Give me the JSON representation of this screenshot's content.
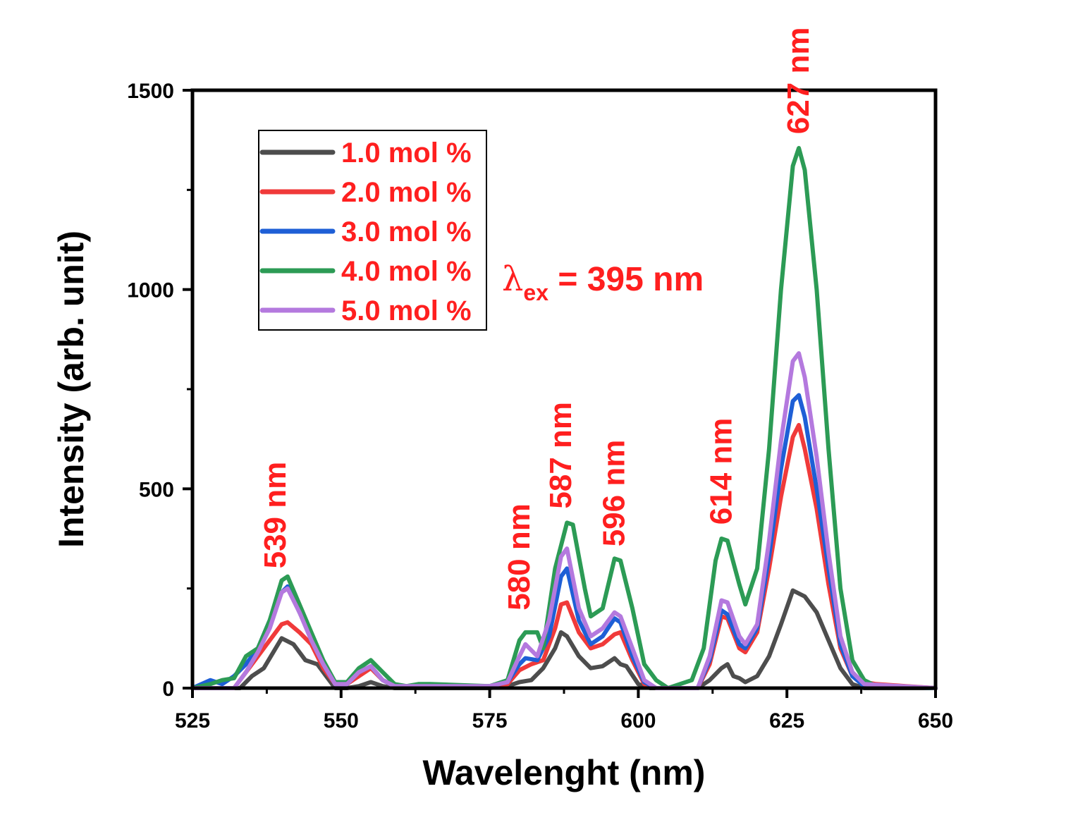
{
  "chart_data": {
    "type": "line",
    "title": "",
    "xlabel": "Wavelenght (nm)",
    "ylabel": "Intensity (arb. unit)",
    "xlim": [
      525,
      650
    ],
    "ylim": [
      0,
      1500
    ],
    "xticks": [
      525,
      550,
      575,
      600,
      625,
      650
    ],
    "yticks": [
      0,
      500,
      1000,
      1500
    ],
    "grid": false,
    "legend_position": "top-left",
    "excitation": {
      "symbol": "λ",
      "subscript": "ex",
      "text": " = 395 nm"
    },
    "peak_labels": [
      {
        "text": "539 nm",
        "x": 539,
        "y": 300
      },
      {
        "text": "580 nm",
        "x": 580,
        "y": 195
      },
      {
        "text": "587 nm",
        "x": 587,
        "y": 450
      },
      {
        "text": "596 nm",
        "x": 596,
        "y": 355
      },
      {
        "text": "614 nm",
        "x": 614,
        "y": 410
      },
      {
        "text": "627 nm",
        "x": 627,
        "y": 1390
      }
    ],
    "series": [
      {
        "name": "1.0 mol %",
        "color": "#4d4d4d",
        "points": [
          [
            525,
            0
          ],
          [
            533,
            0
          ],
          [
            535,
            30
          ],
          [
            537,
            50
          ],
          [
            539,
            100
          ],
          [
            540,
            125
          ],
          [
            542,
            110
          ],
          [
            544,
            70
          ],
          [
            546,
            60
          ],
          [
            548,
            20
          ],
          [
            549,
            0
          ],
          [
            551,
            0
          ],
          [
            553,
            5
          ],
          [
            555,
            15
          ],
          [
            557,
            5
          ],
          [
            559,
            0
          ],
          [
            575,
            0
          ],
          [
            578,
            5
          ],
          [
            580,
            15
          ],
          [
            582,
            20
          ],
          [
            584,
            50
          ],
          [
            586,
            100
          ],
          [
            587,
            140
          ],
          [
            588,
            130
          ],
          [
            590,
            80
          ],
          [
            592,
            50
          ],
          [
            594,
            55
          ],
          [
            596,
            75
          ],
          [
            597,
            60
          ],
          [
            598,
            55
          ],
          [
            600,
            10
          ],
          [
            602,
            0
          ],
          [
            610,
            0
          ],
          [
            612,
            20
          ],
          [
            614,
            50
          ],
          [
            615,
            60
          ],
          [
            616,
            30
          ],
          [
            617,
            25
          ],
          [
            618,
            15
          ],
          [
            620,
            30
          ],
          [
            622,
            80
          ],
          [
            624,
            160
          ],
          [
            626,
            245
          ],
          [
            628,
            230
          ],
          [
            630,
            190
          ],
          [
            632,
            120
          ],
          [
            634,
            50
          ],
          [
            636,
            10
          ],
          [
            638,
            0
          ],
          [
            650,
            0
          ]
        ]
      },
      {
        "name": "2.0 mol %",
        "color": "#f03a3a",
        "points": [
          [
            525,
            0
          ],
          [
            532,
            0
          ],
          [
            534,
            40
          ],
          [
            536,
            80
          ],
          [
            538,
            120
          ],
          [
            540,
            160
          ],
          [
            541,
            165
          ],
          [
            543,
            140
          ],
          [
            545,
            110
          ],
          [
            547,
            50
          ],
          [
            549,
            10
          ],
          [
            551,
            10
          ],
          [
            553,
            30
          ],
          [
            555,
            50
          ],
          [
            557,
            20
          ],
          [
            559,
            5
          ],
          [
            575,
            5
          ],
          [
            578,
            10
          ],
          [
            580,
            45
          ],
          [
            582,
            60
          ],
          [
            584,
            70
          ],
          [
            586,
            150
          ],
          [
            587,
            210
          ],
          [
            588,
            215
          ],
          [
            590,
            140
          ],
          [
            592,
            100
          ],
          [
            594,
            110
          ],
          [
            596,
            135
          ],
          [
            597,
            140
          ],
          [
            599,
            70
          ],
          [
            601,
            10
          ],
          [
            603,
            0
          ],
          [
            610,
            0
          ],
          [
            612,
            60
          ],
          [
            614,
            180
          ],
          [
            615,
            175
          ],
          [
            617,
            100
          ],
          [
            618,
            90
          ],
          [
            620,
            140
          ],
          [
            622,
            300
          ],
          [
            624,
            480
          ],
          [
            626,
            630
          ],
          [
            627,
            660
          ],
          [
            628,
            600
          ],
          [
            630,
            450
          ],
          [
            632,
            260
          ],
          [
            634,
            100
          ],
          [
            636,
            30
          ],
          [
            638,
            15
          ],
          [
            640,
            10
          ],
          [
            645,
            5
          ],
          [
            650,
            0
          ]
        ]
      },
      {
        "name": "3.0 mol %",
        "color": "#1e5fd6",
        "points": [
          [
            525,
            0
          ],
          [
            528,
            20
          ],
          [
            530,
            10
          ],
          [
            532,
            30
          ],
          [
            534,
            60
          ],
          [
            536,
            100
          ],
          [
            538,
            170
          ],
          [
            540,
            240
          ],
          [
            541,
            255
          ],
          [
            543,
            190
          ],
          [
            545,
            130
          ],
          [
            547,
            60
          ],
          [
            549,
            10
          ],
          [
            551,
            10
          ],
          [
            553,
            40
          ],
          [
            555,
            55
          ],
          [
            557,
            20
          ],
          [
            559,
            5
          ],
          [
            575,
            5
          ],
          [
            578,
            15
          ],
          [
            580,
            60
          ],
          [
            581,
            75
          ],
          [
            583,
            70
          ],
          [
            585,
            130
          ],
          [
            587,
            280
          ],
          [
            588,
            300
          ],
          [
            590,
            170
          ],
          [
            592,
            110
          ],
          [
            594,
            130
          ],
          [
            596,
            175
          ],
          [
            597,
            165
          ],
          [
            599,
            80
          ],
          [
            601,
            15
          ],
          [
            603,
            0
          ],
          [
            610,
            0
          ],
          [
            612,
            70
          ],
          [
            614,
            195
          ],
          [
            615,
            185
          ],
          [
            617,
            110
          ],
          [
            618,
            100
          ],
          [
            620,
            150
          ],
          [
            622,
            330
          ],
          [
            624,
            550
          ],
          [
            626,
            720
          ],
          [
            627,
            735
          ],
          [
            628,
            680
          ],
          [
            630,
            500
          ],
          [
            632,
            300
          ],
          [
            634,
            110
          ],
          [
            636,
            30
          ],
          [
            638,
            5
          ],
          [
            650,
            0
          ]
        ]
      },
      {
        "name": "4.0 mol %",
        "color": "#2c9b55",
        "points": [
          [
            525,
            0
          ],
          [
            528,
            10
          ],
          [
            530,
            20
          ],
          [
            532,
            25
          ],
          [
            534,
            80
          ],
          [
            536,
            100
          ],
          [
            538,
            170
          ],
          [
            540,
            270
          ],
          [
            541,
            280
          ],
          [
            543,
            210
          ],
          [
            545,
            140
          ],
          [
            547,
            70
          ],
          [
            549,
            15
          ],
          [
            551,
            15
          ],
          [
            553,
            50
          ],
          [
            555,
            70
          ],
          [
            557,
            40
          ],
          [
            559,
            10
          ],
          [
            561,
            5
          ],
          [
            563,
            10
          ],
          [
            565,
            10
          ],
          [
            575,
            5
          ],
          [
            578,
            20
          ],
          [
            580,
            120
          ],
          [
            581,
            140
          ],
          [
            583,
            140
          ],
          [
            584,
            100
          ],
          [
            586,
            300
          ],
          [
            588,
            415
          ],
          [
            589,
            410
          ],
          [
            591,
            250
          ],
          [
            592,
            180
          ],
          [
            594,
            200
          ],
          [
            596,
            325
          ],
          [
            597,
            320
          ],
          [
            599,
            200
          ],
          [
            601,
            60
          ],
          [
            603,
            20
          ],
          [
            605,
            0
          ],
          [
            607,
            10
          ],
          [
            609,
            20
          ],
          [
            611,
            100
          ],
          [
            613,
            320
          ],
          [
            614,
            375
          ],
          [
            615,
            370
          ],
          [
            617,
            260
          ],
          [
            618,
            210
          ],
          [
            620,
            300
          ],
          [
            622,
            600
          ],
          [
            624,
            1000
          ],
          [
            626,
            1310
          ],
          [
            627,
            1355
          ],
          [
            628,
            1300
          ],
          [
            630,
            1000
          ],
          [
            632,
            600
          ],
          [
            634,
            250
          ],
          [
            636,
            70
          ],
          [
            638,
            20
          ],
          [
            640,
            5
          ],
          [
            650,
            0
          ]
        ]
      },
      {
        "name": "5.0 mol %",
        "color": "#b479de",
        "points": [
          [
            525,
            0
          ],
          [
            532,
            0
          ],
          [
            534,
            40
          ],
          [
            536,
            90
          ],
          [
            538,
            150
          ],
          [
            540,
            240
          ],
          [
            541,
            250
          ],
          [
            543,
            190
          ],
          [
            545,
            120
          ],
          [
            547,
            60
          ],
          [
            549,
            10
          ],
          [
            551,
            10
          ],
          [
            553,
            40
          ],
          [
            555,
            55
          ],
          [
            557,
            20
          ],
          [
            559,
            5
          ],
          [
            575,
            5
          ],
          [
            578,
            15
          ],
          [
            580,
            80
          ],
          [
            581,
            110
          ],
          [
            583,
            80
          ],
          [
            585,
            170
          ],
          [
            587,
            330
          ],
          [
            588,
            350
          ],
          [
            590,
            200
          ],
          [
            592,
            130
          ],
          [
            594,
            150
          ],
          [
            596,
            190
          ],
          [
            597,
            180
          ],
          [
            599,
            100
          ],
          [
            601,
            20
          ],
          [
            603,
            0
          ],
          [
            610,
            0
          ],
          [
            612,
            80
          ],
          [
            614,
            220
          ],
          [
            615,
            215
          ],
          [
            617,
            130
          ],
          [
            618,
            110
          ],
          [
            620,
            160
          ],
          [
            622,
            370
          ],
          [
            624,
            620
          ],
          [
            626,
            820
          ],
          [
            627,
            840
          ],
          [
            628,
            780
          ],
          [
            630,
            580
          ],
          [
            632,
            340
          ],
          [
            634,
            130
          ],
          [
            636,
            40
          ],
          [
            638,
            10
          ],
          [
            650,
            0
          ]
        ]
      }
    ]
  }
}
